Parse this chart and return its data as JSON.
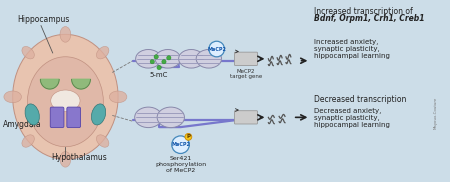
{
  "bg_color": "#ccdde8",
  "fig_width": 4.5,
  "fig_height": 1.82,
  "dpi": 100,
  "brain_labels": [
    "Hippocampus",
    "Amygdala",
    "Hypothalamus"
  ],
  "top_title": "Increased transcription of",
  "top_italic": "Bdnf, Orpm1, Crh1, Creb1",
  "top_result": "Increased anxiety,\nsynaptic plasticity,\nhippocampal learning",
  "bottom_title": "Decreased transcription",
  "bottom_result": "Decreased anxiety,\nsynaptic plasticity,\nhippocampal learning",
  "target_gene_label": "MeCP2\ntarget gene",
  "fivemC_label": "5-mC",
  "phospho_label": "Ser421\nphosphorylation\nof MeCP2",
  "nucleosome_color": "#d0cfe0",
  "nucleosome_edge": "#8888aa",
  "nucleosome_stripe": "#9999bb",
  "dna_color": "#7777cc",
  "mecp2_fill": "#ddeeff",
  "mecp2_stroke": "#4488bb",
  "mecp2_p_fill": "#f5c518",
  "fivemC_fill": "#44aa44",
  "gene_box_color": "#cccccc",
  "gene_box_edge": "#999999",
  "arrow_color": "#222222",
  "text_color": "#222222",
  "copyright_text": "Mayoux-Couture"
}
